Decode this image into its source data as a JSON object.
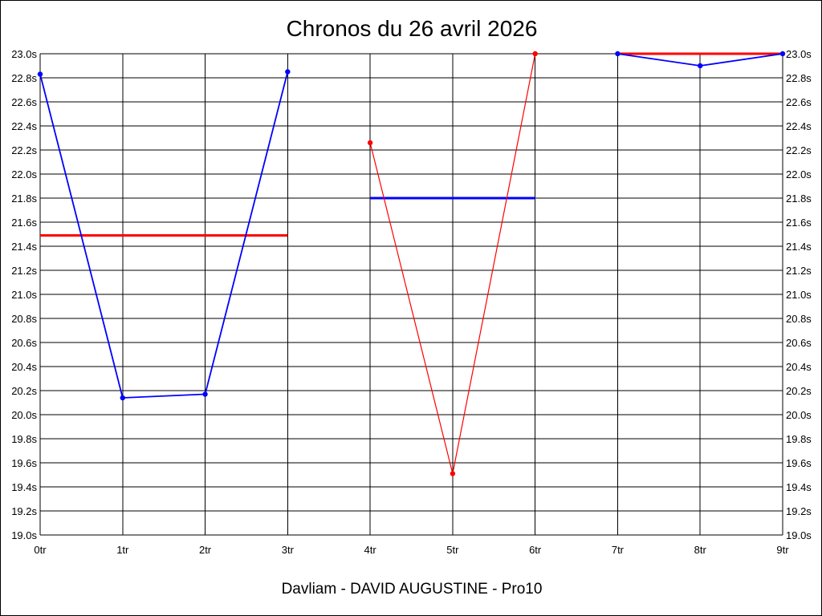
{
  "chart_data": {
    "type": "line",
    "title": "Chronos du 26 avril 2026",
    "footer": "Davliam - DAVID AUGUSTINE - Pro10",
    "x_ticks": [
      "0tr",
      "1tr",
      "2tr",
      "3tr",
      "4tr",
      "5tr",
      "6tr",
      "7tr",
      "8tr",
      "9tr"
    ],
    "y_ticks": [
      "19.0s",
      "19.2s",
      "19.4s",
      "19.6s",
      "19.8s",
      "20.0s",
      "20.2s",
      "20.4s",
      "20.6s",
      "20.8s",
      "21.0s",
      "21.2s",
      "21.4s",
      "21.6s",
      "21.8s",
      "22.0s",
      "22.2s",
      "22.4s",
      "22.6s",
      "22.8s",
      "23.0s"
    ],
    "ylim": [
      19.0,
      23.0
    ],
    "xlim": [
      0,
      9
    ],
    "grid": true,
    "colors": {
      "blue": "#0000ff",
      "red": "#ff0000",
      "grid": "#000000"
    },
    "segments": [
      {
        "points": [
          [
            0,
            22.83
          ],
          [
            1,
            20.14
          ],
          [
            2,
            20.17
          ],
          [
            3,
            22.85
          ]
        ],
        "line_color": "#0000ff",
        "average": {
          "value": 21.49,
          "x_range": [
            0,
            3
          ],
          "color": "#ff0000"
        }
      },
      {
        "points": [
          [
            4,
            22.26
          ],
          [
            5,
            19.51
          ],
          [
            6,
            23.0
          ]
        ],
        "line_color": "#ff0000",
        "average": {
          "value": 21.8,
          "x_range": [
            4,
            6
          ],
          "color": "#0000ff"
        }
      },
      {
        "points": [
          [
            7,
            23.0
          ],
          [
            8,
            22.9
          ],
          [
            9,
            23.0
          ]
        ],
        "line_color": "#0000ff",
        "average": {
          "value": 23.0,
          "x_range": [
            7,
            9
          ],
          "color": "#ff0000"
        }
      }
    ]
  }
}
